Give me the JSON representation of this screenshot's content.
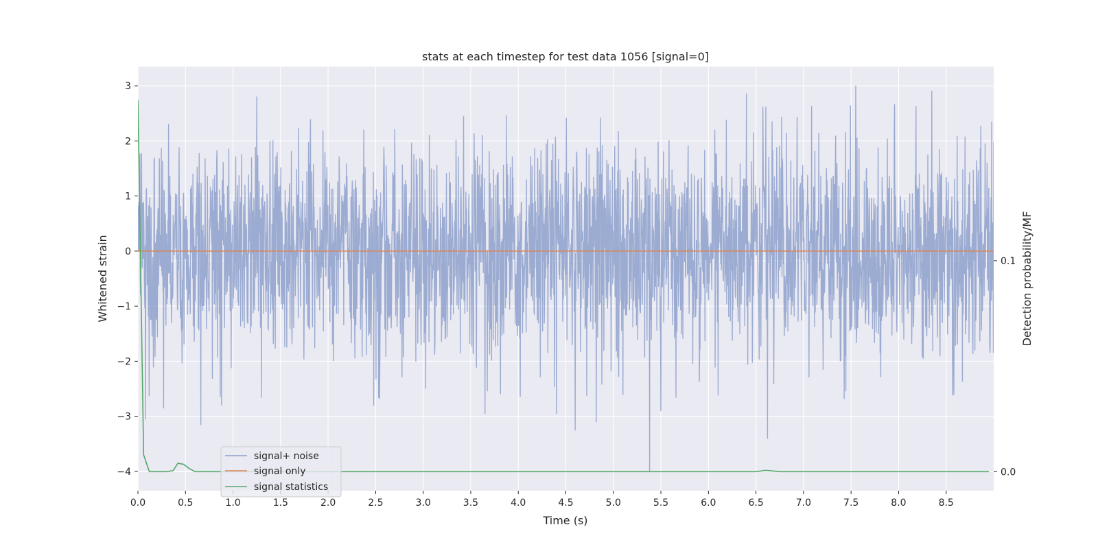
{
  "chart_data": {
    "type": "line",
    "title": "stats at each timestep for test data 1056 [signal=0]",
    "xlabel": "Time (s)",
    "ylabel": "Whitened strain",
    "y2label": "Detection probability/MF",
    "xlim": [
      0.0,
      9.0
    ],
    "ylim": [
      -4.35,
      3.35
    ],
    "y2lim": [
      -0.009,
      0.192
    ],
    "xticks": [
      0.0,
      0.5,
      1.0,
      1.5,
      2.0,
      2.5,
      3.0,
      3.5,
      4.0,
      4.5,
      5.0,
      5.5,
      6.0,
      6.5,
      7.0,
      7.5,
      8.0,
      8.5
    ],
    "xtick_labels": [
      "0.0",
      "0.5",
      "1.0",
      "1.5",
      "2.0",
      "2.5",
      "3.0",
      "3.5",
      "4.0",
      "4.5",
      "5.0",
      "5.5",
      "6.0",
      "6.5",
      "7.0",
      "7.5",
      "8.0",
      "8.5"
    ],
    "yticks": [
      3,
      2,
      1,
      0,
      -1,
      -2,
      -3,
      -4
    ],
    "ytick_labels": [
      "3",
      "2",
      "1",
      "0",
      "−1",
      "−2",
      "−3",
      "−4"
    ],
    "y2ticks": [
      0.1,
      0.0
    ],
    "y2tick_labels": [
      "0.1",
      "0.0"
    ],
    "grid": true,
    "legend_position": "lower-left",
    "series": [
      {
        "name": "signal+ noise",
        "axis": "left",
        "color": "#8da0cb",
        "style": "noise",
        "duration": 9.0,
        "amplitude_std": 0.95,
        "samples": 2600,
        "spikes": [
          {
            "x": 0.08,
            "y": -3.05
          },
          {
            "x": 0.27,
            "y": -2.85
          },
          {
            "x": 0.66,
            "y": -3.15
          },
          {
            "x": 0.88,
            "y": -2.8
          },
          {
            "x": 1.25,
            "y": 2.8
          },
          {
            "x": 2.48,
            "y": -2.8
          },
          {
            "x": 3.65,
            "y": -2.95
          },
          {
            "x": 4.4,
            "y": -2.95
          },
          {
            "x": 4.6,
            "y": -3.25
          },
          {
            "x": 4.82,
            "y": -3.1
          },
          {
            "x": 5.38,
            "y": -4.0
          },
          {
            "x": 5.5,
            "y": -2.9
          },
          {
            "x": 6.4,
            "y": 2.85
          },
          {
            "x": 6.62,
            "y": -3.4
          },
          {
            "x": 7.55,
            "y": 3.0
          },
          {
            "x": 8.35,
            "y": 2.9
          }
        ]
      },
      {
        "name": "signal only",
        "axis": "left",
        "color": "#dd8452",
        "style": "flat",
        "x": [
          0.0,
          9.0
        ],
        "y": [
          0.0,
          0.0
        ]
      },
      {
        "name": "signal statistics",
        "axis": "right",
        "color": "#55a868",
        "style": "line",
        "x": [
          0.0,
          0.06,
          0.12,
          0.2,
          0.3,
          0.37,
          0.42,
          0.48,
          0.54,
          0.6,
          1.0,
          2.0,
          3.0,
          4.0,
          5.0,
          6.0,
          6.5,
          6.6,
          6.66,
          6.75,
          7.0,
          8.0,
          8.95
        ],
        "y": [
          0.176,
          0.008,
          0.0,
          0.0,
          0.0,
          0.0005,
          0.004,
          0.0035,
          0.0015,
          0.0,
          0.0,
          0.0,
          0.0,
          0.0,
          0.0,
          0.0,
          0.0,
          0.0006,
          0.0004,
          0.0,
          0.0,
          0.0,
          0.0
        ]
      }
    ]
  },
  "colors": {
    "plot_background": "#eaeaf2",
    "grid": "#ffffff",
    "text": "#262626"
  }
}
